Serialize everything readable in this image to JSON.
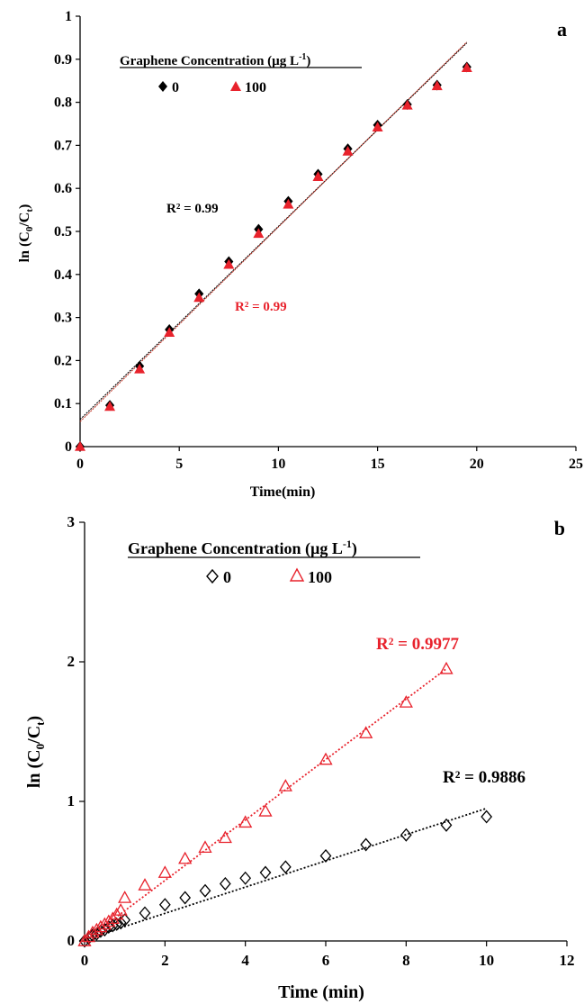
{
  "chart_data": [
    {
      "type": "scatter",
      "panel_label": "a",
      "xlabel": "Time(min)",
      "ylabel": "ln (C0/Ct)",
      "ylabel_parts": {
        "main": "ln (C",
        "sub1": "0",
        "mid": "/C",
        "sub2": "t",
        "end": ")"
      },
      "xlim": [
        0,
        25
      ],
      "ylim": [
        0,
        1
      ],
      "x_ticks": [
        "0",
        "5",
        "10",
        "15",
        "20",
        "25"
      ],
      "y_ticks": [
        "0",
        "0.1",
        "0.2",
        "0.3",
        "0.4",
        "0.5",
        "0.6",
        "0.7",
        "0.8",
        "0.9",
        "1"
      ],
      "legend": {
        "title": "Graphene Concentration (µg L-1)",
        "title_parts": {
          "main": "Graphene Concentration (µg L",
          "sup": "-1",
          "end": ")"
        },
        "placement": "top-left"
      },
      "series": [
        {
          "name": "0",
          "marker": "filled-diamond",
          "color": "#000000",
          "x": [
            0,
            1.5,
            3,
            4.5,
            6,
            7.5,
            9,
            10.5,
            12,
            13.5,
            15,
            16.5,
            18,
            19.5
          ],
          "y": [
            0,
            0.096,
            0.187,
            0.272,
            0.355,
            0.43,
            0.505,
            0.57,
            0.633,
            0.692,
            0.747,
            0.795,
            0.84,
            0.882
          ],
          "r2_label": "R² = 0.99",
          "trendline": {
            "x": [
              0,
              19.5
            ],
            "y": [
              0.063,
              0.938
            ],
            "color": "#000000"
          }
        },
        {
          "name": "100",
          "marker": "filled-triangle",
          "color": "#e8222c",
          "x": [
            0,
            1.5,
            3,
            4.5,
            6,
            7.5,
            9,
            10.5,
            12,
            13.5,
            15,
            16.5,
            18,
            19.5
          ],
          "y": [
            0,
            0.093,
            0.18,
            0.265,
            0.346,
            0.423,
            0.495,
            0.563,
            0.627,
            0.686,
            0.742,
            0.793,
            0.838,
            0.88
          ],
          "r2_label": "R² = 0.99",
          "trendline": {
            "x": [
              0,
              19.5
            ],
            "y": [
              0.058,
              0.94
            ],
            "color": "#c0392b"
          }
        }
      ]
    },
    {
      "type": "scatter",
      "panel_label": "b",
      "xlabel": "Time (min)",
      "ylabel": "ln (C0/Ct)",
      "ylabel_parts": {
        "main": "ln (C",
        "sub1": "0",
        "mid": "/C",
        "sub2": "t",
        "end": ")"
      },
      "xlim": [
        0,
        12
      ],
      "ylim": [
        0,
        3
      ],
      "x_ticks": [
        "0",
        "2",
        "4",
        "6",
        "8",
        "10",
        "12"
      ],
      "y_ticks": [
        "0",
        "1",
        "2",
        "3"
      ],
      "legend": {
        "title": "Graphene Concentration (µg L-1)",
        "title_parts": {
          "main": "Graphene Concentration (µg L",
          "sup": "-1",
          "end": ")"
        },
        "placement": "top-left"
      },
      "series": [
        {
          "name": "0",
          "marker": "open-diamond",
          "color": "#000000",
          "x": [
            0,
            0.1,
            0.2,
            0.3,
            0.4,
            0.5,
            0.6,
            0.7,
            0.8,
            0.9,
            1,
            1.5,
            2,
            2.5,
            3,
            3.5,
            4,
            4.5,
            5,
            6,
            7,
            8,
            9,
            10
          ],
          "y": [
            0,
            0.02,
            0.04,
            0.05,
            0.07,
            0.08,
            0.1,
            0.11,
            0.12,
            0.13,
            0.15,
            0.2,
            0.26,
            0.31,
            0.36,
            0.41,
            0.45,
            0.49,
            0.53,
            0.61,
            0.69,
            0.76,
            0.83,
            0.89
          ],
          "r2_label": "R² = 0.9886",
          "trendline": {
            "x": [
              0,
              10
            ],
            "y": [
              0.01,
              0.95
            ],
            "color": "#000000"
          }
        },
        {
          "name": "100",
          "marker": "open-triangle",
          "color": "#e8222c",
          "x": [
            0,
            0.1,
            0.2,
            0.3,
            0.4,
            0.5,
            0.6,
            0.7,
            0.8,
            0.9,
            1,
            1.5,
            2,
            2.5,
            3,
            3.5,
            4,
            4.5,
            5,
            6,
            7,
            8,
            9
          ],
          "y": [
            0,
            0.03,
            0.06,
            0.08,
            0.1,
            0.12,
            0.14,
            0.16,
            0.19,
            0.22,
            0.31,
            0.4,
            0.49,
            0.59,
            0.67,
            0.74,
            0.85,
            0.93,
            1.11,
            1.3,
            1.49,
            1.71,
            1.95
          ],
          "r2_label": "R² = 0.9977",
          "trendline": {
            "x": [
              0,
              9
            ],
            "y": [
              0.0,
              1.95
            ],
            "color": "#e8222c"
          }
        }
      ]
    }
  ]
}
